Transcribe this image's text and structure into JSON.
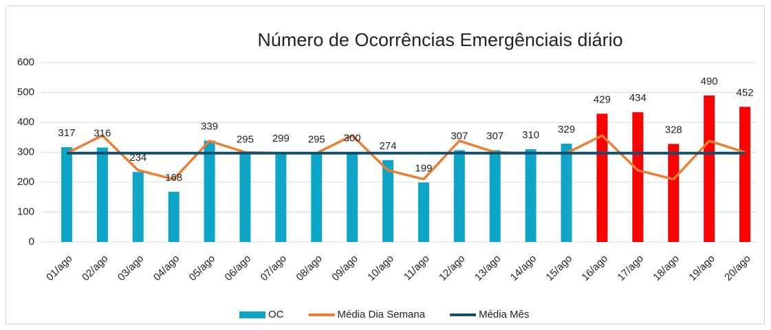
{
  "chart_data": {
    "type": "bar",
    "title": "Número de Ocorrências Emergênciais diário",
    "categories": [
      "01/ago",
      "02/ago",
      "03/ago",
      "04/ago",
      "05/ago",
      "06/ago",
      "07/ago",
      "08/ago",
      "09/ago",
      "10/ago",
      "11/ago",
      "12/ago",
      "13/ago",
      "14/ago",
      "15/ago",
      "16/ago",
      "17/ago",
      "18/ago",
      "19/ago",
      "20/ago"
    ],
    "series": [
      {
        "name": "OC",
        "type": "bar",
        "values": [
          317,
          316,
          234,
          168,
          339,
          295,
          299,
          295,
          300,
          274,
          199,
          307,
          307,
          310,
          329,
          429,
          434,
          328,
          490,
          452
        ],
        "colors": [
          "#0ea5c6",
          "#0ea5c6",
          "#0ea5c6",
          "#0ea5c6",
          "#0ea5c6",
          "#0ea5c6",
          "#0ea5c6",
          "#0ea5c6",
          "#0ea5c6",
          "#0ea5c6",
          "#0ea5c6",
          "#0ea5c6",
          "#0ea5c6",
          "#0ea5c6",
          "#0ea5c6",
          "#ff0000",
          "#ff0000",
          "#ff0000",
          "#ff0000",
          "#ff0000"
        ]
      },
      {
        "name": "Média Dia Semana",
        "type": "line",
        "color": "#ed7d31",
        "values": [
          297,
          356,
          240,
          210,
          338,
          300,
          297,
          297,
          356,
          240,
          210,
          338,
          300,
          297,
          297,
          356,
          240,
          210,
          338,
          300
        ]
      },
      {
        "name": "Média Mês",
        "type": "line",
        "color": "#124e6e",
        "values": [
          297,
          297,
          297,
          297,
          297,
          297,
          297,
          297,
          297,
          297,
          297,
          297,
          297,
          297,
          297,
          297,
          297,
          297,
          297,
          297
        ]
      }
    ],
    "ylim": [
      0,
      600
    ],
    "yticks": [
      0,
      100,
      200,
      300,
      400,
      500,
      600
    ],
    "grid": true,
    "legend": "bottom"
  }
}
